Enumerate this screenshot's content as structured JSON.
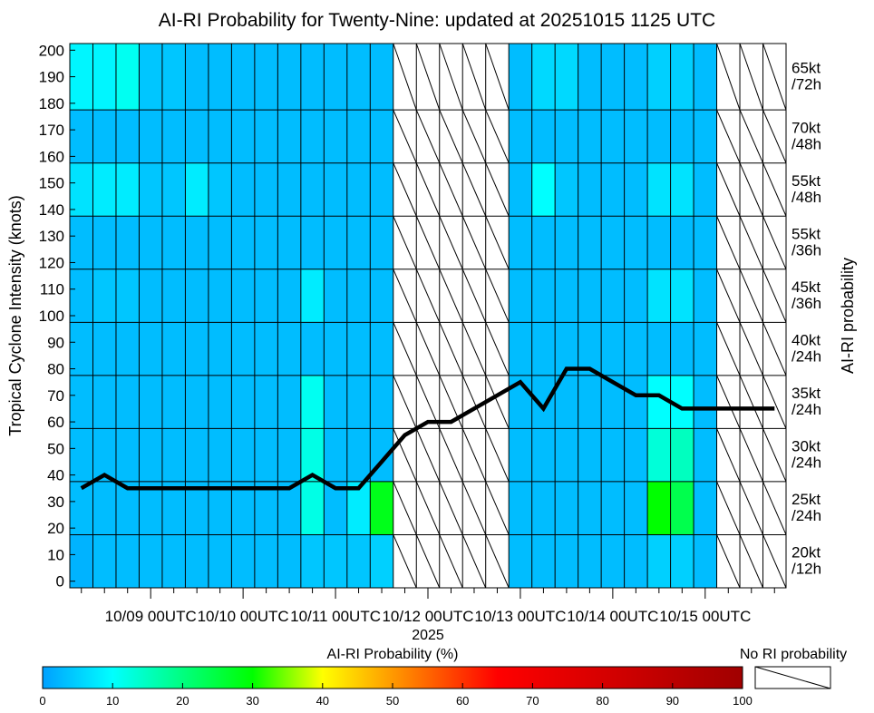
{
  "chart_data": {
    "type": "heatmap",
    "title": "AI-RI Probability for Twenty-Nine: updated at 20251015 1125 UTC",
    "ylabel": "Tropical Cyclone Intensity (knots)",
    "y2label": "AI-RI probability",
    "xlabel": "2025",
    "ylim": [
      -2.5,
      202.5
    ],
    "yticks": [
      0,
      10,
      20,
      30,
      40,
      50,
      60,
      70,
      80,
      90,
      100,
      110,
      120,
      130,
      140,
      150,
      160,
      170,
      180,
      190,
      200
    ],
    "xtick_labels": [
      "10/09 00UTC",
      "10/10 00UTC",
      "10/11 00UTC",
      "10/12 00UTC",
      "10/13 00UTC",
      "10/14 00UTC",
      "10/15 00UTC"
    ],
    "rows": [
      {
        "label": "20kt /12h",
        "values": [
          2,
          3,
          3,
          3,
          3,
          3,
          3,
          3,
          3,
          3,
          4,
          4,
          4,
          5,
          null,
          null,
          null,
          null,
          null,
          3,
          3,
          3,
          3,
          3,
          3,
          5,
          5,
          3,
          null,
          null,
          null
        ]
      },
      {
        "label": "25kt /24h",
        "values": [
          3,
          3,
          3,
          3,
          3,
          3,
          3,
          3,
          3,
          3,
          12,
          3,
          8,
          28,
          null,
          null,
          null,
          null,
          null,
          3,
          3,
          3,
          3,
          3,
          3,
          30,
          24,
          3,
          null,
          null,
          null
        ]
      },
      {
        "label": "30kt /24h",
        "values": [
          3,
          3,
          3,
          3,
          3,
          3,
          3,
          3,
          3,
          3,
          12,
          3,
          3,
          3,
          null,
          null,
          null,
          null,
          null,
          3,
          3,
          3,
          3,
          3,
          3,
          13,
          15,
          3,
          null,
          null,
          null
        ]
      },
      {
        "label": "35kt /24h",
        "values": [
          3,
          3,
          3,
          3,
          3,
          3,
          3,
          3,
          3,
          3,
          11,
          3,
          3,
          3,
          null,
          null,
          null,
          null,
          null,
          3,
          3,
          3,
          3,
          3,
          3,
          10,
          10,
          3,
          null,
          null,
          null
        ]
      },
      {
        "label": "40kt /24h",
        "values": [
          3,
          3,
          3,
          3,
          3,
          3,
          3,
          3,
          3,
          3,
          3,
          3,
          3,
          3,
          null,
          null,
          null,
          null,
          null,
          3,
          3,
          3,
          3,
          3,
          3,
          3,
          3,
          3,
          null,
          null,
          null
        ]
      },
      {
        "label": "45kt /36h",
        "values": [
          3,
          4,
          4,
          3,
          3,
          3,
          3,
          3,
          3,
          3,
          8,
          3,
          3,
          3,
          null,
          null,
          null,
          null,
          null,
          3,
          3,
          3,
          3,
          3,
          3,
          7,
          7,
          3,
          null,
          null,
          null
        ]
      },
      {
        "label": "55kt /36h",
        "values": [
          3,
          3,
          3,
          3,
          3,
          3,
          3,
          3,
          3,
          3,
          3,
          3,
          3,
          3,
          null,
          null,
          null,
          null,
          null,
          3,
          3,
          3,
          3,
          3,
          3,
          3,
          3,
          3,
          null,
          null,
          null
        ]
      },
      {
        "label": "55kt /48h",
        "values": [
          7,
          8,
          8,
          4,
          4,
          8,
          4,
          3,
          3,
          3,
          3,
          3,
          3,
          3,
          null,
          null,
          null,
          null,
          null,
          3,
          10,
          4,
          3,
          3,
          3,
          7,
          7,
          3,
          null,
          null,
          null
        ]
      },
      {
        "label": "70kt /48h",
        "values": [
          3,
          3,
          3,
          3,
          3,
          3,
          3,
          3,
          3,
          3,
          3,
          3,
          3,
          3,
          null,
          null,
          null,
          null,
          null,
          3,
          3,
          3,
          3,
          3,
          3,
          3,
          3,
          3,
          null,
          null,
          null
        ]
      },
      {
        "label": "65kt /72h",
        "values": [
          9,
          9,
          11,
          4,
          4,
          3,
          3,
          3,
          3,
          3,
          3,
          3,
          3,
          3,
          null,
          null,
          null,
          null,
          null,
          3,
          6,
          6,
          3,
          3,
          3,
          5,
          5,
          3,
          null,
          null,
          null
        ]
      }
    ],
    "intensity_series": {
      "name": "Intensity (knots)",
      "values": [
        35,
        40,
        35,
        35,
        35,
        35,
        35,
        35,
        35,
        35,
        40,
        35,
        35,
        45,
        55,
        60,
        60,
        65,
        70,
        75,
        65,
        80,
        80,
        75,
        70,
        70,
        65,
        65,
        65,
        65,
        65
      ]
    },
    "colorbar": {
      "label": "AI-RI Probability (%)",
      "ticks": [
        0,
        10,
        20,
        30,
        40,
        50,
        60,
        70,
        80,
        90,
        100
      ],
      "colors": [
        "#00a0ff",
        "#00ffff",
        "#00ff00",
        "#ffff00",
        "#ff0000",
        "#a00000"
      ],
      "color_stops": [
        0,
        10,
        30,
        40,
        65,
        100
      ]
    },
    "no_data_label": "No RI probability"
  }
}
